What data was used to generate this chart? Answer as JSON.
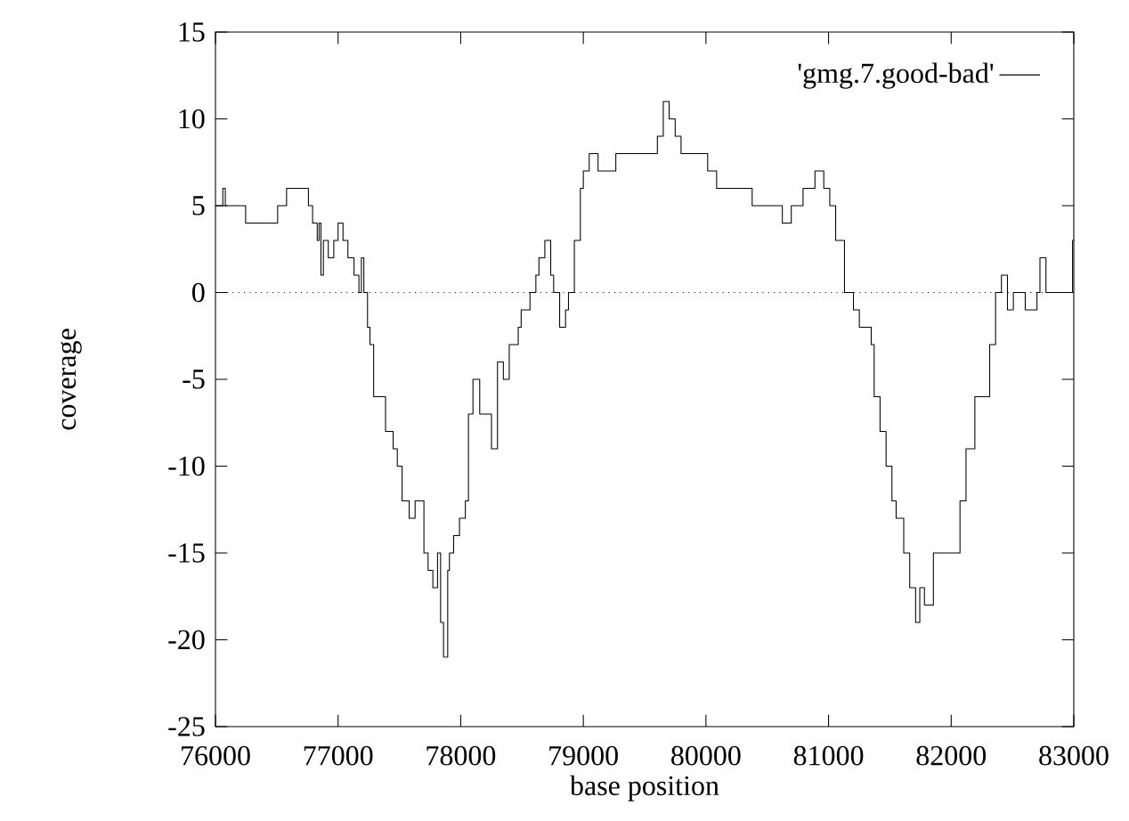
{
  "chart_data": {
    "type": "step",
    "xlabel": "base position",
    "ylabel": "coverage",
    "xlim": [
      76000,
      83000
    ],
    "xticks": [
      76000,
      77000,
      78000,
      79000,
      80000,
      81000,
      82000,
      83000
    ],
    "ylim": [
      -25,
      15
    ],
    "yticks": [
      -25,
      -20,
      -15,
      -10,
      -5,
      0,
      5,
      10,
      15
    ],
    "legend": "top right",
    "marker": "none",
    "line_style": "solid",
    "ref_lines": [
      {
        "axis": "y",
        "value": 0,
        "line_style": "dotted",
        "color": "#000000"
      }
    ],
    "series": [
      {
        "name": "'gmg.7.good-bad'",
        "color": "#000000",
        "x": [
          76000,
          76060,
          76080,
          76246,
          76507,
          76580,
          76758,
          76792,
          76830,
          76845,
          76860,
          76880,
          76920,
          76965,
          77000,
          77040,
          77080,
          77130,
          77170,
          77190,
          77210,
          77240,
          77260,
          77290,
          77387,
          77449,
          77483,
          77522,
          77580,
          77628,
          77700,
          77734,
          77773,
          77811,
          77836,
          77860,
          77894,
          77908,
          77942,
          77990,
          78038,
          78063,
          78100,
          78155,
          78251,
          78300,
          78348,
          78396,
          78469,
          78493,
          78565,
          78613,
          78638,
          78686,
          78734,
          78758,
          78807,
          78855,
          78879,
          78927,
          78976,
          79000,
          79048,
          79120,
          79265,
          79411,
          79604,
          79652,
          79700,
          79749,
          79797,
          80014,
          80087,
          80232,
          80377,
          80551,
          80623,
          80696,
          80792,
          80889,
          80961,
          81010,
          81058,
          81130,
          81203,
          81251,
          81348,
          81372,
          81420,
          81469,
          81517,
          81551,
          81613,
          81662,
          81710,
          81744,
          81782,
          81855,
          82072,
          82121,
          82193,
          82314,
          82362,
          82410,
          82459,
          82507,
          82604,
          82700,
          82724,
          82773,
          82990,
          83000
        ],
        "values": [
          5,
          6,
          5,
          4,
          5,
          6,
          5,
          4,
          3,
          4,
          1,
          3,
          2,
          3,
          4,
          3,
          2,
          1,
          0,
          2,
          0,
          -2,
          -3,
          -6,
          -8,
          -9,
          -10,
          -12,
          -13,
          -12,
          -15,
          -16,
          -17,
          -15,
          -19,
          -21,
          -16,
          -15,
          -14,
          -13,
          -12,
          -7,
          -5,
          -7,
          -9,
          -4,
          -5,
          -3,
          -2,
          -1,
          0,
          1,
          2,
          3,
          1,
          0,
          -2,
          -1,
          0,
          3,
          6,
          7,
          8,
          7,
          8,
          8,
          9,
          11,
          10,
          9,
          8,
          7,
          6,
          6,
          5,
          5,
          4,
          5,
          6,
          7,
          6,
          5,
          3,
          0,
          -1,
          -2,
          -3,
          -6,
          -8,
          -10,
          -12,
          -13,
          -15,
          -17,
          -19,
          -17,
          -18,
          -15,
          -12,
          -9,
          -6,
          -3,
          0,
          1,
          -1,
          0,
          -1,
          0,
          2,
          0,
          3,
          3
        ]
      }
    ]
  }
}
